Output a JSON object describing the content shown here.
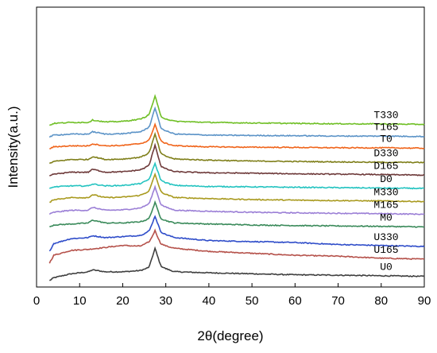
{
  "chart_data": {
    "type": "line",
    "xlabel": "2θ(degree)",
    "ylabel": "Intensity(a.u.)",
    "xlim": [
      0,
      90
    ],
    "xticks": [
      0,
      10,
      20,
      30,
      40,
      50,
      60,
      70,
      80,
      90
    ],
    "ylim": [
      0,
      14
    ],
    "grid": false,
    "legend": "labels at right end of each curve",
    "x_range_measured": [
      3,
      90
    ],
    "peak_position_2theta": 27.5,
    "note_units": "stacked XRD patterns, baseline offsets in arbitrary intensity units",
    "series": [
      {
        "name": "U0",
        "color": "#3f3f3f",
        "baseline": 0.3,
        "peak": 1.35,
        "profile": [
          [
            3,
            0.0
          ],
          [
            4,
            0.15
          ],
          [
            8,
            0.35
          ],
          [
            12,
            0.45
          ],
          [
            13,
            0.55
          ],
          [
            16,
            0.45
          ],
          [
            20,
            0.45
          ],
          [
            24,
            0.5
          ],
          [
            26,
            0.6
          ],
          [
            27.5,
            1.65
          ],
          [
            29,
            0.65
          ],
          [
            32,
            0.45
          ],
          [
            40,
            0.4
          ],
          [
            50,
            0.35
          ],
          [
            60,
            0.3
          ],
          [
            70,
            0.28
          ],
          [
            80,
            0.25
          ],
          [
            90,
            0.22
          ]
        ]
      },
      {
        "name": "U165",
        "color": "#b5514a",
        "baseline": 1.0,
        "peak": 1.3,
        "profile": [
          [
            3,
            0.9
          ],
          [
            4,
            1.3
          ],
          [
            8,
            1.55
          ],
          [
            12,
            1.6
          ],
          [
            16,
            1.7
          ],
          [
            20,
            1.8
          ],
          [
            24,
            1.75
          ],
          [
            26,
            1.9
          ],
          [
            27.5,
            2.55
          ],
          [
            29,
            1.8
          ],
          [
            32,
            1.65
          ],
          [
            40,
            1.5
          ],
          [
            50,
            1.4
          ],
          [
            60,
            1.3
          ],
          [
            70,
            1.25
          ],
          [
            80,
            1.15
          ],
          [
            90,
            1.1
          ]
        ]
      },
      {
        "name": "U330",
        "color": "#2e4cc9",
        "baseline": 1.6,
        "peak": 1.3,
        "profile": [
          [
            3,
            1.5
          ],
          [
            4,
            1.9
          ],
          [
            8,
            2.15
          ],
          [
            12,
            2.2
          ],
          [
            13,
            2.3
          ],
          [
            16,
            2.2
          ],
          [
            20,
            2.25
          ],
          [
            24,
            2.3
          ],
          [
            26,
            2.45
          ],
          [
            27.5,
            3.3
          ],
          [
            29,
            2.4
          ],
          [
            32,
            2.2
          ],
          [
            40,
            2.05
          ],
          [
            50,
            2.0
          ],
          [
            60,
            1.95
          ],
          [
            70,
            1.85
          ],
          [
            80,
            1.8
          ],
          [
            90,
            1.75
          ]
        ]
      },
      {
        "name": "M0",
        "color": "#3a8a5a",
        "baseline": 2.8,
        "peak": 1.1,
        "profile": [
          [
            3,
            2.75
          ],
          [
            4,
            2.85
          ],
          [
            8,
            2.9
          ],
          [
            12,
            2.95
          ],
          [
            13,
            3.1
          ],
          [
            16,
            2.95
          ],
          [
            20,
            2.95
          ],
          [
            24,
            3.0
          ],
          [
            26,
            3.1
          ],
          [
            27.5,
            4.0
          ],
          [
            29,
            3.1
          ],
          [
            32,
            2.95
          ],
          [
            40,
            2.9
          ],
          [
            50,
            2.85
          ],
          [
            60,
            2.82
          ],
          [
            70,
            2.8
          ],
          [
            80,
            2.78
          ],
          [
            90,
            2.75
          ]
        ]
      },
      {
        "name": "M165",
        "color": "#9b7fd6",
        "baseline": 3.45,
        "peak": 1.3,
        "profile": [
          [
            3,
            3.4
          ],
          [
            4,
            3.5
          ],
          [
            8,
            3.6
          ],
          [
            12,
            3.6
          ],
          [
            13,
            3.75
          ],
          [
            16,
            3.6
          ],
          [
            20,
            3.62
          ],
          [
            24,
            3.7
          ],
          [
            26,
            3.85
          ],
          [
            27.5,
            4.8
          ],
          [
            29,
            3.8
          ],
          [
            32,
            3.6
          ],
          [
            40,
            3.55
          ],
          [
            50,
            3.5
          ],
          [
            60,
            3.47
          ],
          [
            70,
            3.45
          ],
          [
            80,
            3.43
          ],
          [
            90,
            3.4
          ]
        ]
      },
      {
        "name": "M330",
        "color": "#a99a1f",
        "baseline": 4.1,
        "peak": 1.3,
        "profile": [
          [
            3,
            4.0
          ],
          [
            4,
            4.15
          ],
          [
            8,
            4.25
          ],
          [
            12,
            4.25
          ],
          [
            13,
            4.4
          ],
          [
            16,
            4.25
          ],
          [
            20,
            4.27
          ],
          [
            24,
            4.35
          ],
          [
            26,
            4.5
          ],
          [
            27.5,
            5.45
          ],
          [
            29,
            4.45
          ],
          [
            32,
            4.25
          ],
          [
            40,
            4.2
          ],
          [
            50,
            4.15
          ],
          [
            60,
            4.12
          ],
          [
            70,
            4.1
          ],
          [
            80,
            4.08
          ],
          [
            90,
            4.05
          ]
        ]
      },
      {
        "name": "D0",
        "color": "#23c3c0",
        "baseline": 4.75,
        "peak": 1.25,
        "profile": [
          [
            3,
            4.7
          ],
          [
            4,
            4.8
          ],
          [
            8,
            4.85
          ],
          [
            12,
            4.85
          ],
          [
            13,
            4.95
          ],
          [
            16,
            4.85
          ],
          [
            20,
            4.87
          ],
          [
            24,
            4.95
          ],
          [
            26,
            5.1
          ],
          [
            27.5,
            6.0
          ],
          [
            29,
            5.05
          ],
          [
            32,
            4.87
          ],
          [
            40,
            4.82
          ],
          [
            50,
            4.8
          ],
          [
            60,
            4.78
          ],
          [
            70,
            4.76
          ],
          [
            80,
            4.74
          ],
          [
            90,
            4.72
          ]
        ]
      },
      {
        "name": "D165",
        "color": "#6e3a3a",
        "baseline": 5.4,
        "peak": 1.5,
        "profile": [
          [
            3,
            5.35
          ],
          [
            4,
            5.45
          ],
          [
            8,
            5.55
          ],
          [
            12,
            5.55
          ],
          [
            13,
            5.7
          ],
          [
            16,
            5.55
          ],
          [
            20,
            5.57
          ],
          [
            24,
            5.65
          ],
          [
            26,
            5.8
          ],
          [
            27.5,
            6.95
          ],
          [
            29,
            5.75
          ],
          [
            32,
            5.57
          ],
          [
            40,
            5.52
          ],
          [
            50,
            5.5
          ],
          [
            60,
            5.47
          ],
          [
            70,
            5.45
          ],
          [
            80,
            5.43
          ],
          [
            90,
            5.4
          ]
        ]
      },
      {
        "name": "D330",
        "color": "#7f7f1a",
        "baseline": 6.05,
        "peak": 1.4,
        "profile": [
          [
            3,
            6.0
          ],
          [
            4,
            6.1
          ],
          [
            8,
            6.2
          ],
          [
            12,
            6.2
          ],
          [
            13,
            6.35
          ],
          [
            16,
            6.2
          ],
          [
            20,
            6.22
          ],
          [
            24,
            6.3
          ],
          [
            26,
            6.45
          ],
          [
            27.5,
            7.5
          ],
          [
            29,
            6.4
          ],
          [
            32,
            6.22
          ],
          [
            40,
            6.17
          ],
          [
            50,
            6.12
          ],
          [
            60,
            6.1
          ],
          [
            70,
            6.08
          ],
          [
            80,
            6.06
          ],
          [
            90,
            6.05
          ]
        ]
      },
      {
        "name": "T0",
        "color": "#f0641a",
        "baseline": 6.8,
        "peak": 1.2,
        "profile": [
          [
            3,
            6.75
          ],
          [
            4,
            6.85
          ],
          [
            8,
            6.9
          ],
          [
            12,
            6.9
          ],
          [
            13,
            7.0
          ],
          [
            16,
            6.9
          ],
          [
            20,
            6.92
          ],
          [
            24,
            7.0
          ],
          [
            26,
            7.1
          ],
          [
            27.5,
            8.0
          ],
          [
            29,
            7.05
          ],
          [
            32,
            6.9
          ],
          [
            40,
            6.85
          ],
          [
            50,
            6.83
          ],
          [
            60,
            6.82
          ],
          [
            70,
            6.8
          ],
          [
            80,
            6.8
          ],
          [
            90,
            6.78
          ]
        ]
      },
      {
        "name": "T165",
        "color": "#5b93c7",
        "baseline": 7.4,
        "peak": 1.5,
        "profile": [
          [
            3,
            7.35
          ],
          [
            4,
            7.45
          ],
          [
            8,
            7.5
          ],
          [
            12,
            7.5
          ],
          [
            13,
            7.62
          ],
          [
            16,
            7.5
          ],
          [
            20,
            7.52
          ],
          [
            24,
            7.6
          ],
          [
            26,
            7.75
          ],
          [
            27.5,
            8.85
          ],
          [
            29,
            7.7
          ],
          [
            32,
            7.5
          ],
          [
            40,
            7.45
          ],
          [
            50,
            7.43
          ],
          [
            60,
            7.42
          ],
          [
            70,
            7.4
          ],
          [
            80,
            7.4
          ],
          [
            90,
            7.38
          ]
        ]
      },
      {
        "name": "T330",
        "color": "#6fbf25",
        "baseline": 8.0,
        "peak": 1.4,
        "profile": [
          [
            3,
            7.95
          ],
          [
            4,
            8.05
          ],
          [
            8,
            8.1
          ],
          [
            12,
            8.1
          ],
          [
            13,
            8.22
          ],
          [
            16,
            8.12
          ],
          [
            20,
            8.15
          ],
          [
            24,
            8.25
          ],
          [
            26,
            8.4
          ],
          [
            27.5,
            9.45
          ],
          [
            29,
            8.3
          ],
          [
            32,
            8.15
          ],
          [
            40,
            8.1
          ],
          [
            50,
            8.07
          ],
          [
            60,
            8.05
          ],
          [
            70,
            8.03
          ],
          [
            80,
            8.02
          ],
          [
            90,
            8.0
          ]
        ]
      }
    ]
  }
}
